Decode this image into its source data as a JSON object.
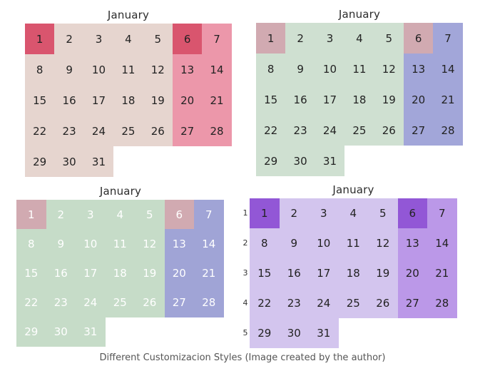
{
  "calendars": [
    {
      "title": "January",
      "days": [
        "1",
        "2",
        "3",
        "4",
        "5",
        "6",
        "7",
        "8",
        "9",
        "10",
        "11",
        "12",
        "13",
        "14",
        "15",
        "16",
        "17",
        "18",
        "19",
        "20",
        "21",
        "22",
        "23",
        "24",
        "25",
        "26",
        "27",
        "28",
        "29",
        "30",
        "31"
      ],
      "week_numbers": [],
      "colors": {
        "weekday": "#e6d5cf",
        "weekend": "#ec97aa",
        "highlight": "#d9556e",
        "text": "#222222",
        "empty": "transparent"
      }
    },
    {
      "title": "January",
      "days": [
        "1",
        "2",
        "3",
        "4",
        "5",
        "6",
        "7",
        "8",
        "9",
        "10",
        "11",
        "12",
        "13",
        "14",
        "15",
        "16",
        "17",
        "18",
        "19",
        "20",
        "21",
        "22",
        "23",
        "24",
        "25",
        "26",
        "27",
        "28",
        "29",
        "30",
        "31"
      ],
      "week_numbers": [],
      "colors": {
        "weekday": "#cfe0d1",
        "weekend": "#a2a6d9",
        "highlight_weekday": "#d1aab1",
        "highlight_weekend": "#d1aab1",
        "text": "#222222"
      }
    },
    {
      "title": "January",
      "days": [
        "1",
        "2",
        "3",
        "4",
        "5",
        "6",
        "7",
        "8",
        "9",
        "10",
        "11",
        "12",
        "13",
        "14",
        "15",
        "16",
        "17",
        "18",
        "19",
        "20",
        "21",
        "22",
        "23",
        "24",
        "25",
        "26",
        "27",
        "28",
        "29",
        "30",
        "31"
      ],
      "week_numbers": [],
      "colors": {
        "weekday": "#c6dcc8",
        "weekend": "#a0a4d6",
        "highlight_weekday": "#d1aab1",
        "highlight_weekend": "#d1aab1",
        "text": "#ffffff"
      }
    },
    {
      "title": "January",
      "days": [
        "1",
        "2",
        "3",
        "4",
        "5",
        "6",
        "7",
        "8",
        "9",
        "10",
        "11",
        "12",
        "13",
        "14",
        "15",
        "16",
        "17",
        "18",
        "19",
        "20",
        "21",
        "22",
        "23",
        "24",
        "25",
        "26",
        "27",
        "28",
        "29",
        "30",
        "31"
      ],
      "week_numbers": [
        "1",
        "2",
        "3",
        "4",
        "5"
      ],
      "colors": {
        "weekday": "#d3c5ee",
        "weekend": "#bb98e8",
        "highlight": "#9257d6",
        "text": "#222222"
      }
    }
  ],
  "caption": "Different Customizacion Styles (Image created by the author)"
}
